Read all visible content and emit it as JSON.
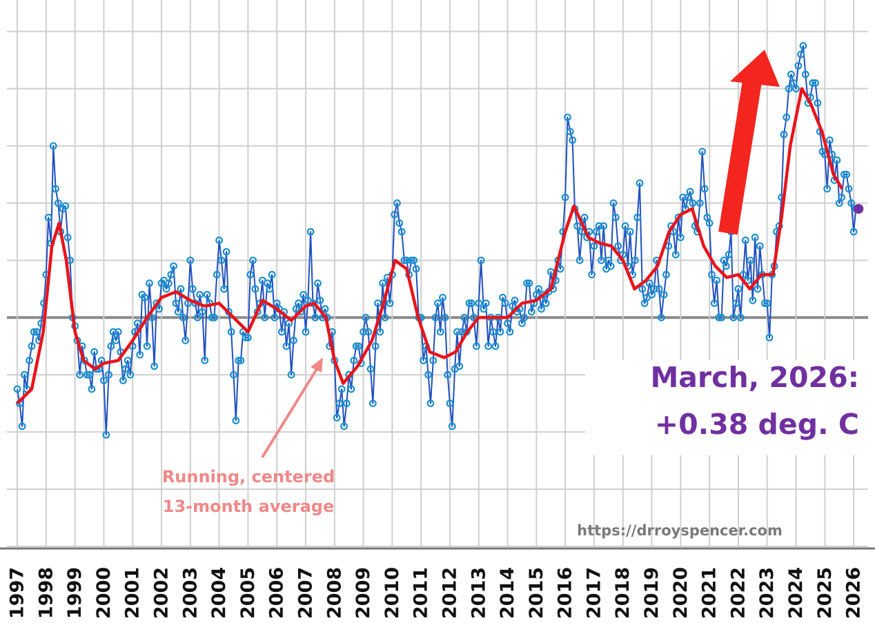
{
  "chart_data": {
    "type": "line",
    "series": [
      {
        "color": "#1f4fc0",
        "marker": true,
        "x": [
          1997,
          1997.08,
          1997.17,
          1997.25,
          1997.33,
          1997.42,
          1997.5,
          1997.58,
          1997.67,
          1997.75,
          1997.83,
          1997.92,
          1998,
          1998.08,
          1998.17,
          1998.25,
          1998.33,
          1998.42,
          1998.5,
          1998.58,
          1998.67,
          1998.75,
          1998.83,
          1998.92,
          1999,
          1999.08,
          1999.17,
          1999.25,
          1999.33,
          1999.42,
          1999.5,
          1999.58,
          1999.67,
          1999.75,
          1999.83,
          1999.92,
          2000,
          2000.08,
          2000.17,
          2000.25,
          2000.33,
          2000.42,
          2000.5,
          2000.58,
          2000.67,
          2000.75,
          2000.83,
          2000.92,
          2001,
          2001.08,
          2001.17,
          2001.25,
          2001.33,
          2001.42,
          2001.5,
          2001.58,
          2001.67,
          2001.75,
          2001.83,
          2001.92,
          2002,
          2002.08,
          2002.17,
          2002.25,
          2002.33,
          2002.42,
          2002.5,
          2002.58,
          2002.67,
          2002.75,
          2002.83,
          2002.92,
          2003,
          2003.08,
          2003.17,
          2003.25,
          2003.33,
          2003.42,
          2003.5,
          2003.58,
          2003.67,
          2003.75,
          2003.83,
          2003.92,
          2004,
          2004.08,
          2004.17,
          2004.25,
          2004.33,
          2004.42,
          2004.5,
          2004.58,
          2004.67,
          2004.75,
          2004.83,
          2004.92,
          2005,
          2005.08,
          2005.17,
          2005.25,
          2005.33,
          2005.42,
          2005.5,
          2005.58,
          2005.67,
          2005.75,
          2005.83,
          2005.92,
          2006,
          2006.08,
          2006.17,
          2006.25,
          2006.33,
          2006.42,
          2006.5,
          2006.58,
          2006.67,
          2006.75,
          2006.83,
          2006.92,
          2007,
          2007.08,
          2007.17,
          2007.25,
          2007.33,
          2007.42,
          2007.5,
          2007.58,
          2007.67,
          2007.75,
          2007.83,
          2007.92,
          2008,
          2008.08,
          2008.17,
          2008.25,
          2008.33,
          2008.42,
          2008.5,
          2008.58,
          2008.67,
          2008.75,
          2008.83,
          2008.92,
          2009,
          2009.08,
          2009.17,
          2009.25,
          2009.33,
          2009.42,
          2009.5,
          2009.58,
          2009.67,
          2009.75,
          2009.83,
          2009.92,
          2010,
          2010.08,
          2010.17,
          2010.25,
          2010.33,
          2010.42,
          2010.5,
          2010.58,
          2010.67,
          2010.75,
          2010.83,
          2010.92,
          2011,
          2011.08,
          2011.17,
          2011.25,
          2011.33,
          2011.42,
          2011.5,
          2011.58,
          2011.67,
          2011.75,
          2011.83,
          2011.92,
          2012,
          2012.08,
          2012.17,
          2012.25,
          2012.33,
          2012.42,
          2012.5,
          2012.58,
          2012.67,
          2012.75,
          2012.83,
          2012.92,
          2013,
          2013.08,
          2013.17,
          2013.25,
          2013.33,
          2013.42,
          2013.5,
          2013.58,
          2013.67,
          2013.75,
          2013.83,
          2013.92,
          2014,
          2014.08,
          2014.17,
          2014.25,
          2014.33,
          2014.42,
          2014.5,
          2014.58,
          2014.67,
          2014.75,
          2014.83,
          2014.92,
          2015,
          2015.08,
          2015.17,
          2015.25,
          2015.33,
          2015.42,
          2015.5,
          2015.58,
          2015.67,
          2015.75,
          2015.83,
          2015.92,
          2016,
          2016.08,
          2016.17,
          2016.25,
          2016.33,
          2016.42,
          2016.5,
          2016.58,
          2016.67,
          2016.75,
          2016.83,
          2016.92,
          2017,
          2017.08,
          2017.17,
          2017.25,
          2017.33,
          2017.42,
          2017.5,
          2017.58,
          2017.67,
          2017.75,
          2017.83,
          2017.92,
          2018,
          2018.08,
          2018.17,
          2018.25,
          2018.33,
          2018.42,
          2018.5,
          2018.58,
          2018.67,
          2018.75,
          2018.83,
          2018.92,
          2019,
          2019.08,
          2019.17,
          2019.25,
          2019.33,
          2019.42,
          2019.5,
          2019.58,
          2019.67,
          2019.75,
          2019.83,
          2019.92,
          2020,
          2020.08,
          2020.17,
          2020.25,
          2020.33,
          2020.42,
          2020.5,
          2020.58,
          2020.67,
          2020.75,
          2020.83,
          2020.92,
          2021,
          2021.08,
          2021.17,
          2021.25,
          2021.33,
          2021.42,
          2021.5,
          2021.58,
          2021.67,
          2021.75,
          2021.83,
          2021.92,
          2022,
          2022.08,
          2022.17,
          2022.25,
          2022.33,
          2022.42,
          2022.5,
          2022.58,
          2022.67,
          2022.75,
          2022.83,
          2022.92,
          2023,
          2023.08,
          2023.17,
          2023.25,
          2023.33,
          2023.42,
          2023.5,
          2023.58,
          2023.67,
          2023.75,
          2023.83,
          2023.92,
          2024,
          2024.08,
          2024.17,
          2024.25,
          2024.33,
          2024.42,
          2024.5,
          2024.58,
          2024.67,
          2024.75,
          2024.83,
          2024.92,
          2025,
          2025.08,
          2025.17,
          2025.25,
          2025.33,
          2025.42,
          2025.5,
          2025.58,
          2025.67,
          2025.75,
          2025.83,
          2025.92,
          2026,
          2026.08,
          2026.17
        ],
        "values": [
          -0.25,
          -0.3,
          -0.38,
          -0.2,
          -0.25,
          -0.15,
          -0.1,
          -0.05,
          -0.05,
          -0.08,
          -0.02,
          0.05,
          0.15,
          0.35,
          0.26,
          0.6,
          0.45,
          0.4,
          0.3,
          0.38,
          0.39,
          0.28,
          0.2,
          0,
          -0.03,
          -0.08,
          -0.2,
          -0.1,
          -0.15,
          -0.2,
          -0.2,
          -0.25,
          -0.12,
          -0.18,
          -0.18,
          -0.15,
          -0.22,
          -0.41,
          -0.2,
          -0.1,
          -0.05,
          -0.08,
          -0.05,
          -0.12,
          -0.22,
          -0.18,
          -0.15,
          -0.2,
          -0.1,
          -0.05,
          -0.02,
          -0.13,
          0.08,
          0.07,
          -0.1,
          0.12,
          0,
          -0.17,
          0.05,
          0.03,
          0.12,
          0.13,
          0.1,
          0.12,
          0.15,
          0.18,
          0.05,
          0.02,
          0.1,
          0,
          -0.08,
          0.05,
          0.2,
          0.1,
          0.05,
          0,
          0.08,
          0.02,
          -0.15,
          0.08,
          0.05,
          0,
          0,
          0.15,
          0.27,
          0.2,
          0.1,
          0.23,
          0.02,
          -0.05,
          -0.2,
          -0.36,
          -0.15,
          -0.15,
          -0.05,
          -0.07,
          -0.07,
          0.15,
          0.2,
          0.1,
          0.02,
          0.05,
          0.13,
          0,
          0.12,
          0.1,
          0.15,
          0,
          0.05,
          0.03,
          -0.05,
          0.02,
          -0.1,
          -0.02,
          -0.2,
          -0.08,
          0.03,
          0.05,
          0.02,
          0.08,
          -0.05,
          0.06,
          0.3,
          0.05,
          0,
          0.12,
          0.06,
          0,
          0.03,
          0,
          -0.1,
          -0.05,
          -0.15,
          -0.35,
          -0.3,
          -0.25,
          -0.38,
          -0.3,
          -0.2,
          -0.25,
          -0.15,
          -0.1,
          -0.1,
          -0.16,
          -0.05,
          0,
          -0.05,
          -0.18,
          -0.3,
          -0.1,
          0.05,
          -0.05,
          0.12,
          0,
          0.14,
          0.05,
          0.15,
          0.36,
          0.4,
          0.33,
          0.3,
          0.2,
          0.2,
          0.15,
          0.2,
          0.2,
          0.17,
          0,
          0,
          -0.15,
          -0.1,
          -0.2,
          -0.3,
          -0.15,
          0,
          0.05,
          -0.05,
          0.07,
          0,
          -0.2,
          -0.3,
          -0.38,
          -0.18,
          -0.05,
          -0.17,
          -0.05,
          0,
          -0.05,
          0.05,
          0.05,
          0,
          -0.1,
          0.05,
          0.2,
          0.03,
          0.05,
          -0.1,
          0,
          -0.05,
          -0.1,
          0,
          -0.05,
          0.07,
          0.05,
          -0.02,
          -0.05,
          0.04,
          0.06,
          0.02,
          0.03,
          -0.02,
          0,
          0.12,
          0.12,
          0.02,
          0.05,
          0.08,
          0.1,
          0.03,
          0.08,
          0.05,
          0.09,
          0.16,
          0.1,
          0.13,
          0.2,
          0.17,
          0.3,
          0.42,
          0.7,
          0.65,
          0.62,
          0.38,
          0.32,
          0.2,
          0.3,
          0.35,
          0.28,
          0.3,
          0.15,
          0.25,
          0.3,
          0.32,
          0.2,
          0.32,
          0.17,
          0.2,
          0.18,
          0.4,
          0.35,
          0.25,
          0.2,
          0.22,
          0.32,
          0.18,
          0.3,
          0.15,
          0.2,
          0.35,
          0.47,
          0.1,
          0.05,
          0.07,
          0.12,
          0.08,
          0.1,
          0.2,
          0.1,
          0,
          0.08,
          0.15,
          0.25,
          0.32,
          0.3,
          0.22,
          0.35,
          0.28,
          0.42,
          0.38,
          0.42,
          0.44,
          0.4,
          0.32,
          0.3,
          0.4,
          0.58,
          0.45,
          0.35,
          0.33,
          0.15,
          0.05,
          0.13,
          0,
          0,
          0.2,
          0.18,
          0.22,
          0.3,
          0,
          0.05,
          0.1,
          0,
          0.15,
          0.27,
          0.13,
          0.2,
          0.06,
          0.28,
          0.1,
          0.25,
          0.15,
          0.05,
          0.05,
          -0.07,
          0.15,
          0.18,
          0.3,
          0.32,
          0.42,
          0.64,
          0.7,
          0.8,
          0.85,
          0.82,
          0.8,
          0.88,
          0.92,
          0.95,
          0.85,
          0.75,
          0.77,
          0.82,
          0.82,
          0.75,
          0.65,
          0.58,
          0.57,
          0.45,
          0.62,
          0.57,
          0.48,
          0.55,
          0.4,
          0.42,
          0.5,
          0.5,
          0.45,
          0.4,
          0.3,
          0.38,
          0.38
        ]
      },
      {
        "color": "#e8141a",
        "marker": false,
        "x": [
          1997,
          1997.5,
          1997.9,
          1998.2,
          1998.45,
          1998.7,
          1999,
          1999.3,
          1999.7,
          2000,
          2000.5,
          2001,
          2001.5,
          2002,
          2002.5,
          2003,
          2003.5,
          2004,
          2004.5,
          2005,
          2005.5,
          2006,
          2006.5,
          2007,
          2007.3,
          2007.7,
          2008,
          2008.3,
          2008.8,
          2009.3,
          2009.7,
          2010.1,
          2010.5,
          2010.9,
          2011.3,
          2011.8,
          2012.2,
          2012.6,
          2013,
          2013.5,
          2014,
          2014.5,
          2015,
          2015.5,
          2016,
          2016.3,
          2016.8,
          2017.2,
          2017.6,
          2018,
          2018.4,
          2018.8,
          2019.2,
          2019.6,
          2020,
          2020.4,
          2020.8,
          2021.2,
          2021.6,
          2022,
          2022.4,
          2022.8,
          2023.2,
          2023.5,
          2023.8,
          2024.2,
          2024.5,
          2024.9,
          2025.3,
          2025.6
        ],
        "values": [
          -0.3,
          -0.25,
          -0.05,
          0.25,
          0.33,
          0.2,
          -0.05,
          -0.15,
          -0.18,
          -0.16,
          -0.15,
          -0.08,
          0,
          0.07,
          0.09,
          0.06,
          0.04,
          0.05,
          0,
          -0.05,
          0.06,
          0.03,
          -0.01,
          0.04,
          0.05,
          0,
          -0.15,
          -0.23,
          -0.17,
          -0.08,
          0.05,
          0.2,
          0.17,
          0,
          -0.12,
          -0.14,
          -0.12,
          -0.05,
          0,
          0,
          0,
          0.05,
          0.06,
          0.1,
          0.3,
          0.39,
          0.28,
          0.26,
          0.25,
          0.2,
          0.1,
          0.13,
          0.18,
          0.3,
          0.36,
          0.38,
          0.25,
          0.18,
          0.14,
          0.15,
          0.1,
          0.15,
          0.15,
          0.35,
          0.6,
          0.8,
          0.75,
          0.65,
          0.5,
          0.45
        ]
      }
    ],
    "xlim": [
      1996.64,
      2026.5
    ],
    "xticks": [
      1997,
      1998,
      1999,
      2000,
      2001,
      2002,
      2003,
      2004,
      2005,
      2006,
      2007,
      2008,
      2009,
      2010,
      2011,
      2012,
      2013,
      2014,
      2015,
      2016,
      2017,
      2018,
      2019,
      2020,
      2021,
      2022,
      2023,
      2024,
      2025,
      2026
    ],
    "ylim": [
      -0.8,
      1.11
    ],
    "yticks": [
      -0.8,
      -0.6,
      -0.4,
      -0.2,
      0,
      0.2,
      0.4,
      0.6,
      0.8,
      1
    ],
    "grid": true,
    "zero_line": true,
    "highlight_color": "#7030a0",
    "annotations": [
      "March, 2026:",
      "+0.38 deg. C",
      "Running, centered",
      "13-month average",
      "https://drroyspencer.com"
    ]
  }
}
